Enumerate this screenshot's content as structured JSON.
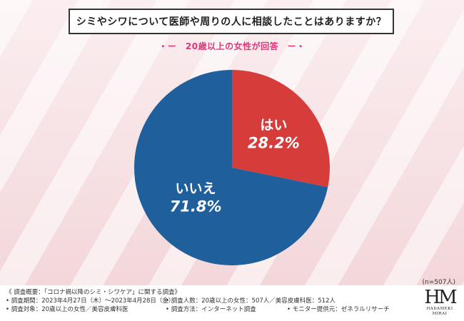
{
  "title": "シミやシワについて医師や周りの人に相談したことはありますか？",
  "subtitle": "・ー　20歳以上の女性が回答　ー・",
  "sample_size": "(n=507人)",
  "chart_data": {
    "type": "pie",
    "title": "シミやシワについて医師や周りの人に相談したことはありますか？",
    "slices": [
      {
        "label": "はい",
        "value": 28.2,
        "value_text": "28.2%",
        "color": "#d63c3a"
      },
      {
        "label": "いいえ",
        "value": 71.8,
        "value_text": "71.8%",
        "color": "#1f5f9c"
      }
    ]
  },
  "footer": {
    "line1": "《 調査概要：「コロナ禍以降のシミ・シワケア」に関する調査》",
    "period": "• 調査期間：2023年4月27日（木）〜2023年4月28日（金）",
    "respondents": "• 調査人数：20歳以上の女性：507人／美容皮膚科医：512人",
    "target": "• 調査対象：20歳以上の女性／美容皮膚科医",
    "method": "• 調査方法：インターネット調査",
    "provider": "• モニター提供元：ゼネラルリサーチ"
  },
  "logo": {
    "mark": "HM",
    "name": "HADAMEKI MIRAI"
  }
}
